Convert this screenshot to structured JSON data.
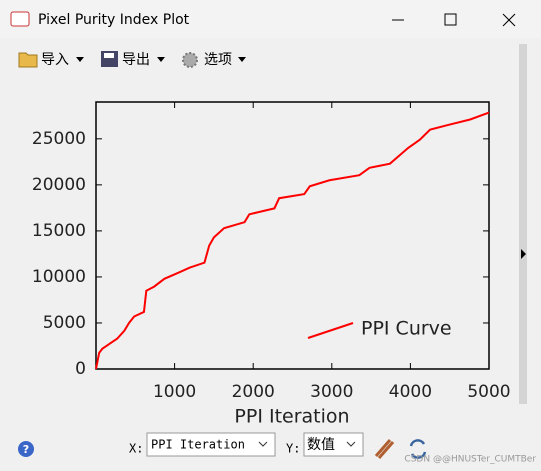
{
  "window": {
    "title": "Pixel Purity Index Plot"
  },
  "toolbar": [
    "导入",
    "导出",
    "选项"
  ],
  "chart_data": {
    "type": "line",
    "x": [
      0,
      40,
      80,
      165,
      270,
      360,
      420,
      485,
      610,
      640,
      740,
      870,
      1060,
      1190,
      1380,
      1440,
      1500,
      1630,
      1890,
      1950,
      2270,
      2330,
      2650,
      2720,
      2970,
      3350,
      3480,
      3740,
      3970,
      4120,
      4250,
      4500,
      4760,
      5000
    ],
    "series": [
      {
        "name": "PPI Curve",
        "color": "#ff0000",
        "values": [
          0,
          1750,
          2200,
          2700,
          3300,
          4150,
          5000,
          5700,
          6200,
          8500,
          8950,
          9800,
          10500,
          11000,
          11550,
          13400,
          14300,
          15300,
          15950,
          16800,
          17450,
          18550,
          19000,
          19850,
          20500,
          21050,
          21850,
          22300,
          24000,
          24900,
          26000,
          26550,
          27100,
          27850
        ]
      }
    ],
    "xlabel": "PPI Iteration",
    "xlim": [
      0,
      5000
    ],
    "xticks": [
      1000,
      2000,
      3000,
      4000,
      5000
    ],
    "ylim": [
      0,
      29000
    ],
    "yticks": [
      0,
      5000,
      10000,
      15000,
      20000,
      25000
    ]
  },
  "controls": {
    "x_label": "X:",
    "x_value": "PPI Iteration",
    "y_label": "Y:",
    "y_value": "数值"
  },
  "watermark": "CSDN @@HNUSTer_CUMTBer"
}
